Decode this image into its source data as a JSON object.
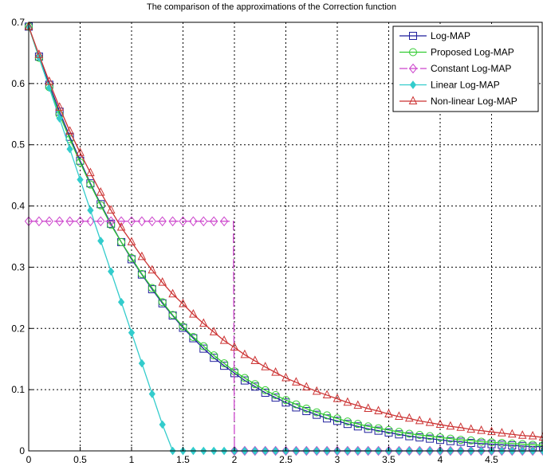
{
  "chart_data": {
    "type": "line",
    "title": "The comparison of the approximations of the Correction function",
    "xlabel": "",
    "ylabel": "",
    "xlim": [
      0,
      5
    ],
    "ylim": [
      0,
      0.7
    ],
    "x_ticks": [
      0,
      0.5,
      1,
      1.5,
      2,
      2.5,
      3,
      3.5,
      4,
      4.5
    ],
    "x_tick_labels": [
      "0",
      "0.5",
      "1",
      "1.5",
      "2",
      "2.5",
      "3",
      "3.5",
      "4",
      "4.5"
    ],
    "y_ticks": [
      0,
      0.1,
      0.2,
      0.3,
      0.4,
      0.5,
      0.6,
      0.7
    ],
    "y_tick_labels": [
      "0",
      "0.1",
      "0.2",
      "0.3",
      "0.4",
      "0.5",
      "0.6",
      "0.7"
    ],
    "grid": true,
    "legend_position": "top-right",
    "x": [
      0,
      0.1,
      0.2,
      0.3,
      0.4,
      0.5,
      0.6,
      0.7,
      0.8,
      0.9,
      1.0,
      1.1,
      1.2,
      1.3,
      1.4,
      1.5,
      1.6,
      1.7,
      1.8,
      1.9,
      2.0,
      2.1,
      2.2,
      2.3,
      2.4,
      2.5,
      2.6,
      2.7,
      2.8,
      2.9,
      3.0,
      3.1,
      3.2,
      3.3,
      3.4,
      3.5,
      3.6,
      3.7,
      3.8,
      3.9,
      4.0,
      4.1,
      4.2,
      4.3,
      4.4,
      4.5,
      4.6,
      4.7,
      4.8,
      4.9,
      5.0
    ],
    "series": [
      {
        "name": "Log-MAP",
        "color": "#1f1f9c",
        "marker": "square",
        "values": [
          0.693,
          0.644,
          0.598,
          0.554,
          0.513,
          0.474,
          0.437,
          0.403,
          0.371,
          0.341,
          0.313,
          0.288,
          0.264,
          0.241,
          0.221,
          0.201,
          0.184,
          0.167,
          0.152,
          0.139,
          0.127,
          0.115,
          0.105,
          0.095,
          0.087,
          0.079,
          0.071,
          0.065,
          0.059,
          0.053,
          0.049,
          0.044,
          0.04,
          0.036,
          0.033,
          0.03,
          0.027,
          0.024,
          0.022,
          0.02,
          0.018,
          0.016,
          0.015,
          0.013,
          0.012,
          0.011,
          0.01,
          0.009,
          0.008,
          0.007,
          0.007
        ]
      },
      {
        "name": "Proposed Log-MAP",
        "color": "#33cc33",
        "marker": "circle",
        "values": [
          0.693,
          0.642,
          0.594,
          0.549,
          0.509,
          0.471,
          0.435,
          0.401,
          0.369,
          0.341,
          0.315,
          0.289,
          0.266,
          0.243,
          0.222,
          0.203,
          0.186,
          0.171,
          0.156,
          0.143,
          0.13,
          0.119,
          0.109,
          0.099,
          0.091,
          0.083,
          0.076,
          0.069,
          0.063,
          0.058,
          0.053,
          0.048,
          0.044,
          0.04,
          0.037,
          0.034,
          0.031,
          0.028,
          0.026,
          0.024,
          0.022,
          0.02,
          0.018,
          0.017,
          0.015,
          0.014,
          0.013,
          0.012,
          0.011,
          0.01,
          0.009
        ]
      },
      {
        "name": "Constant Log-MAP",
        "color": "#cc44cc",
        "marker": "diamond",
        "step_at": 2.0,
        "values": [
          0.375,
          0.375,
          0.375,
          0.375,
          0.375,
          0.375,
          0.375,
          0.375,
          0.375,
          0.375,
          0.375,
          0.375,
          0.375,
          0.375,
          0.375,
          0.375,
          0.375,
          0.375,
          0.375,
          0.375,
          0,
          0,
          0,
          0,
          0,
          0,
          0,
          0,
          0,
          0,
          0,
          0,
          0,
          0,
          0,
          0,
          0,
          0,
          0,
          0,
          0,
          0,
          0,
          0,
          0,
          0,
          0,
          0,
          0,
          0,
          0
        ]
      },
      {
        "name": "Linear Log-MAP",
        "color": "#33cccc",
        "marker": "filled-diamond",
        "values": [
          0.693,
          0.643,
          0.593,
          0.543,
          0.493,
          0.443,
          0.393,
          0.343,
          0.293,
          0.243,
          0.193,
          0.143,
          0.093,
          0.043,
          0,
          0,
          0,
          0,
          0,
          0,
          0,
          0,
          0,
          0,
          0,
          0,
          0,
          0,
          0,
          0,
          0,
          0,
          0,
          0,
          0,
          0,
          0,
          0,
          0,
          0,
          0,
          0,
          0,
          0,
          0,
          0,
          0,
          0,
          0,
          0,
          0
        ]
      },
      {
        "name": "Non-linear Log-MAP",
        "color": "#cc3333",
        "marker": "triangle",
        "values": [
          0.693,
          0.647,
          0.603,
          0.561,
          0.522,
          0.487,
          0.454,
          0.422,
          0.393,
          0.365,
          0.341,
          0.317,
          0.295,
          0.275,
          0.256,
          0.24,
          0.223,
          0.208,
          0.194,
          0.18,
          0.169,
          0.157,
          0.147,
          0.137,
          0.128,
          0.119,
          0.112,
          0.104,
          0.097,
          0.091,
          0.085,
          0.079,
          0.074,
          0.069,
          0.065,
          0.06,
          0.056,
          0.053,
          0.049,
          0.046,
          0.043,
          0.04,
          0.038,
          0.035,
          0.033,
          0.031,
          0.029,
          0.027,
          0.025,
          0.024,
          0.022
        ]
      }
    ]
  }
}
